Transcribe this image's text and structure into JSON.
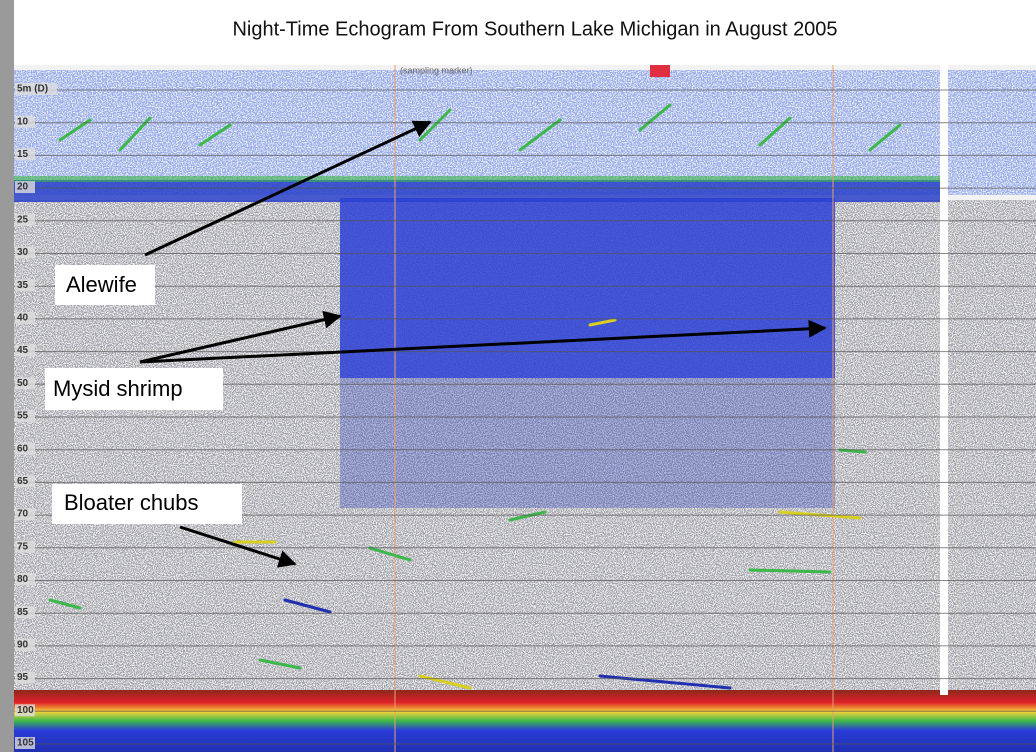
{
  "title": "Night-Time Echogram From Southern Lake Michigan in August 2005",
  "marker_label": "(sampling marker)",
  "depth_labels": [
    "5m (D)",
    "10",
    "15",
    "20",
    "25",
    "30",
    "35",
    "40",
    "45",
    "50",
    "55",
    "60",
    "65",
    "70",
    "75",
    "80",
    "85",
    "90",
    "95",
    "100",
    "105"
  ],
  "annotations": [
    "Alewife",
    "Mysid shrimp",
    "Bloater chubs"
  ]
}
